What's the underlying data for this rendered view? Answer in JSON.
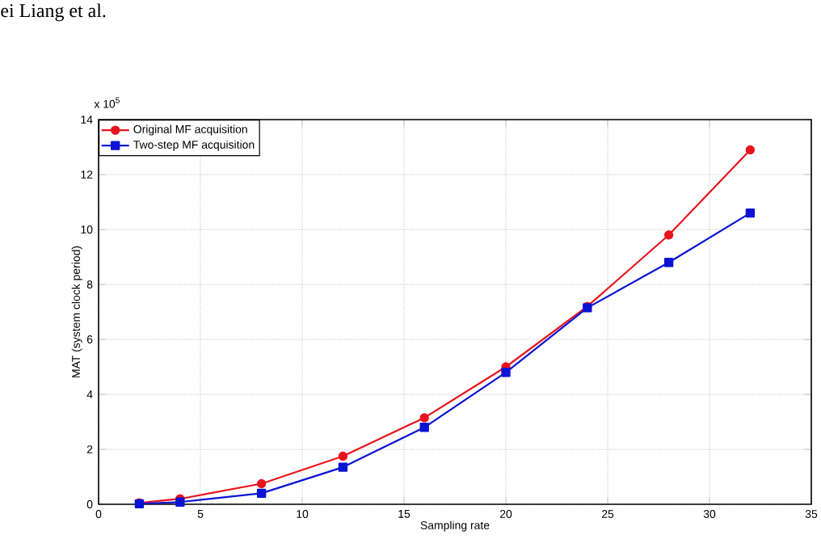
{
  "chart_data": {
    "type": "line",
    "xlabel": "Sampling rate",
    "ylabel": "MAT (system clock period)",
    "annotations": [
      "ei Liang et al.",
      "x 10$^{5}$"
    ],
    "x": [
      2,
      4,
      8,
      12,
      16,
      20,
      24,
      28,
      32
    ],
    "series": [
      {
        "name": "Original MF acquisition",
        "color": "#e8141c",
        "marker": "circle",
        "values": [
          0.05,
          0.2,
          0.75,
          1.75,
          3.15,
          5.0,
          7.2,
          9.8,
          12.9
        ]
      },
      {
        "name": "Two-step MF acquisition",
        "color": "#0a14d2",
        "marker": "square",
        "values": [
          0.02,
          0.08,
          0.4,
          1.35,
          2.8,
          4.8,
          7.15,
          8.8,
          10.6
        ]
      }
    ],
    "xlim": [
      0,
      35
    ],
    "xticks": [
      0,
      5,
      10,
      15,
      20,
      25,
      30,
      35
    ],
    "ylim": [
      0,
      14
    ],
    "yticks": [
      0,
      2,
      4,
      6,
      8,
      10,
      12,
      14
    ],
    "grid": true,
    "legend": "top left",
    "line_style": "solid"
  }
}
